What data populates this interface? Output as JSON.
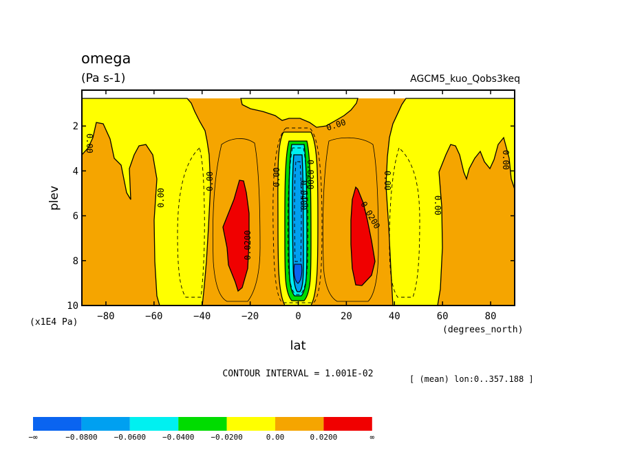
{
  "chart_data": {
    "type": "heatmap",
    "subtype": "filled-contour",
    "title": "omega",
    "units": "(Pa s-1)",
    "dataset": "AGCM5_kuo_Qobs3keq",
    "xlabel": "lat",
    "xunits": "(degrees_north)",
    "ylabel": "plev",
    "yunits": "(x1E4 Pa)",
    "xlim": [
      -90,
      90
    ],
    "ylim": [
      0.4,
      10
    ],
    "y_inverted": true,
    "x_ticks": [
      -80,
      -60,
      -40,
      -20,
      0,
      20,
      40,
      60,
      80
    ],
    "x_tick_labels": [
      "−80",
      "−60",
      "−40",
      "−20",
      "0",
      "20",
      "40",
      "60",
      "80"
    ],
    "y_ticks": [
      2,
      4,
      6,
      8,
      10
    ],
    "y_tick_labels": [
      "2",
      "4",
      "6",
      "8",
      "10"
    ],
    "contour_interval_text": "CONTOUR INTERVAL = 1.001E-02",
    "mean_note": "[ (mean) lon:0..357.188 ]",
    "colorbar": {
      "boundaries": [
        "−∞",
        "−0.0800",
        "−0.0600",
        "−0.0400",
        "−0.0200",
        "0.00",
        "0.0200",
        "∞"
      ],
      "colors": [
        "#0a64f0",
        "#00a0f0",
        "#00f0f0",
        "#00dc00",
        "#ffff00",
        "#f5a500",
        "#f00000"
      ]
    },
    "contour_labels": [
      {
        "text": "0.00",
        "lat": -83,
        "plev": 3.0
      },
      {
        "text": "0.00",
        "lat": -60,
        "plev": 5.0
      },
      {
        "text": "0.00",
        "lat": -38,
        "plev": 4.1
      },
      {
        "text": "0.0200",
        "lat": -22,
        "plev": 7.2
      },
      {
        "text": "0.00",
        "lat": -9,
        "plev": 4.0
      },
      {
        "text": "0.00",
        "lat": 18,
        "plev": 1.8
      },
      {
        "text": "0.0200",
        "lat": 2,
        "plev": 3.5
      },
      {
        "text": "0.0400",
        "lat": 4,
        "plev": 4.9
      },
      {
        "text": "0.0200",
        "lat": 30,
        "plev": 6.0
      },
      {
        "text": "0.00",
        "lat": 39,
        "plev": 4.3
      },
      {
        "text": "0.00",
        "lat": 62,
        "plev": 5.5
      },
      {
        "text": "0.00",
        "lat": 88,
        "plev": 3.5
      }
    ]
  }
}
